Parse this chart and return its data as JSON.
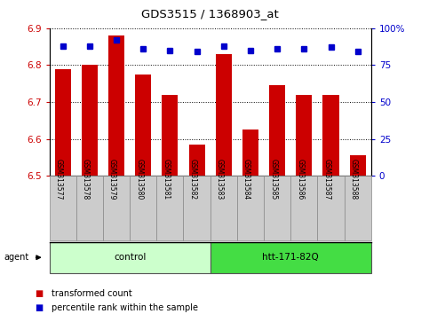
{
  "title": "GDS3515 / 1368903_at",
  "samples": [
    "GSM313577",
    "GSM313578",
    "GSM313579",
    "GSM313580",
    "GSM313581",
    "GSM313582",
    "GSM313583",
    "GSM313584",
    "GSM313585",
    "GSM313586",
    "GSM313587",
    "GSM313588"
  ],
  "bar_values": [
    6.79,
    6.8,
    6.88,
    6.775,
    6.72,
    6.585,
    6.83,
    6.625,
    6.745,
    6.72,
    6.72,
    6.555
  ],
  "percentile_values": [
    88,
    88,
    92,
    86,
    85,
    84,
    88,
    85,
    86,
    86,
    87,
    84
  ],
  "bar_color": "#cc0000",
  "percentile_color": "#0000cc",
  "ymin": 6.5,
  "ymax": 6.9,
  "yticks": [
    6.5,
    6.6,
    6.7,
    6.8,
    6.9
  ],
  "right_yticks": [
    0,
    25,
    50,
    75,
    100
  ],
  "right_ytick_labels": [
    "0",
    "25",
    "50",
    "75",
    "100%"
  ],
  "groups": [
    {
      "label": "control",
      "start": 0,
      "end": 5,
      "color": "#ccffcc"
    },
    {
      "label": "htt-171-82Q",
      "start": 6,
      "end": 11,
      "color": "#44dd44"
    }
  ],
  "agent_label": "agent",
  "legend_bar_label": "transformed count",
  "legend_dot_label": "percentile rank within the sample",
  "bg_color": "#ffffff",
  "tick_label_color": "#cc0000",
  "right_tick_color": "#0000cc",
  "sample_box_color": "#cccccc"
}
